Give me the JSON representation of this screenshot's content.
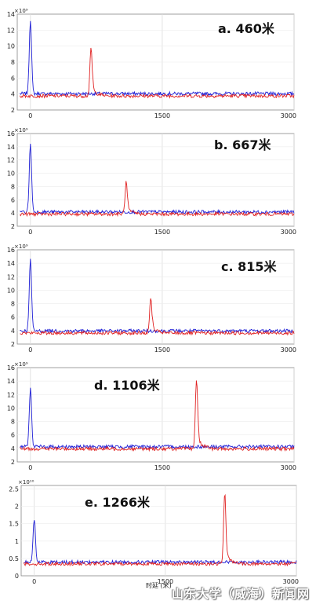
{
  "chart_data": [
    {
      "type": "line",
      "title": "a. 460米",
      "xticks": [
        "0",
        "1500",
        "3000"
      ],
      "yticks": [
        "2",
        "4",
        "6",
        "8",
        "10",
        "12",
        "14"
      ],
      "exponent": "×10⁹",
      "xlim": [
        -150,
        3000
      ],
      "ylim": [
        2,
        14
      ],
      "grid": true,
      "baseline": 3.9,
      "series": [
        {
          "color": "#1f1fd6",
          "peak_x": 0,
          "peak_y": 13.2
        },
        {
          "color": "#e02020",
          "peak_x": 690,
          "peak_y": 9.8
        }
      ]
    },
    {
      "type": "line",
      "title": "b. 667米",
      "xticks": [
        "0",
        "1500",
        "3000"
      ],
      "yticks": [
        "2",
        "4",
        "6",
        "8",
        "10",
        "12",
        "14",
        "16"
      ],
      "exponent": "×10⁹",
      "xlim": [
        -150,
        3000
      ],
      "ylim": [
        2,
        16
      ],
      "grid": true,
      "baseline": 4.0,
      "series": [
        {
          "color": "#1f1fd6",
          "peak_x": 0,
          "peak_y": 14.3
        },
        {
          "color": "#e02020",
          "peak_x": 1090,
          "peak_y": 8.8
        }
      ]
    },
    {
      "type": "line",
      "title": "c. 815米",
      "xticks": [
        "0",
        "1500",
        "3000"
      ],
      "yticks": [
        "2",
        "4",
        "6",
        "8",
        "10",
        "12",
        "14",
        "16"
      ],
      "exponent": "×10⁹",
      "xlim": [
        -150,
        3000
      ],
      "ylim": [
        2,
        16
      ],
      "grid": true,
      "baseline": 3.8,
      "series": [
        {
          "color": "#1f1fd6",
          "peak_x": 0,
          "peak_y": 14.4
        },
        {
          "color": "#e02020",
          "peak_x": 1370,
          "peak_y": 9.0
        }
      ]
    },
    {
      "type": "line",
      "title": "d. 1106米",
      "xticks": [
        "0",
        "1500",
        "3000"
      ],
      "yticks": [
        "2",
        "4",
        "6",
        "8",
        "10",
        "12",
        "14",
        "16"
      ],
      "exponent": "×10⁹",
      "xlim": [
        -150,
        3000
      ],
      "ylim": [
        2,
        16
      ],
      "grid": true,
      "baseline": 4.1,
      "series": [
        {
          "color": "#1f1fd6",
          "peak_x": 0,
          "peak_y": 12.8
        },
        {
          "color": "#e02020",
          "peak_x": 1890,
          "peak_y": 14.5
        }
      ]
    },
    {
      "type": "line",
      "title": "e. 1266米",
      "xticks": [
        "0",
        "1500",
        "3000"
      ],
      "yticks": [
        "0",
        "0.5",
        "1",
        "1.5",
        "2",
        "2.5"
      ],
      "exponent": "×10¹⁰",
      "xlim": [
        -150,
        3000
      ],
      "ylim": [
        0,
        2.6
      ],
      "grid": true,
      "baseline": 0.37,
      "series": [
        {
          "color": "#1f1fd6",
          "peak_x": 0,
          "peak_y": 1.62
        },
        {
          "color": "#e02020",
          "peak_x": 2180,
          "peak_y": 2.4
        }
      ]
    }
  ],
  "xlabel": "时延 (米)",
  "watermark": "山东大学（威海）新闻网"
}
